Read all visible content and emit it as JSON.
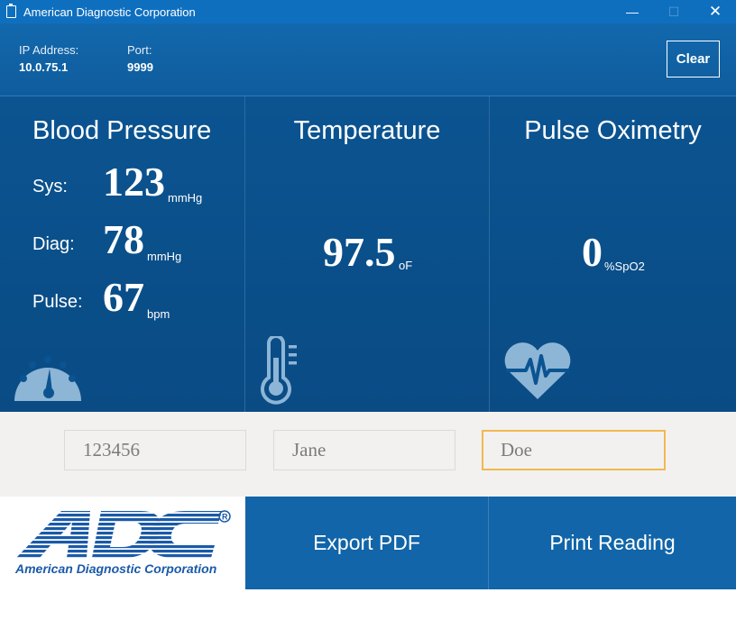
{
  "window": {
    "title": "American Diagnostic Corporation",
    "minimize_glyph": "—",
    "maximize_glyph": "☐",
    "close_glyph": "✕"
  },
  "connection": {
    "ip_label": "IP Address:",
    "ip_value": "10.0.75.1",
    "port_label": "Port:",
    "port_value": "9999",
    "clear_label": "Clear"
  },
  "blood_pressure": {
    "title": "Blood Pressure",
    "sys_label": "Sys:",
    "sys_value": "123",
    "sys_unit": "mmHg",
    "diag_label": "Diag:",
    "diag_value": "78",
    "diag_unit": "mmHg",
    "pulse_label": "Pulse:",
    "pulse_value": "67",
    "pulse_unit": "bpm",
    "icon": "gauge-icon"
  },
  "temperature": {
    "title": "Temperature",
    "value": "97.5",
    "unit": "oF",
    "icon": "thermometer-icon"
  },
  "pulse_oximetry": {
    "title": "Pulse Oximetry",
    "value": "0",
    "unit": "%SpO2",
    "icon": "heart-pulse-icon"
  },
  "patient": {
    "id_value": "123456",
    "first_name_value": "Jane",
    "last_name_value": "Doe"
  },
  "actions": {
    "export_label": "Export PDF",
    "print_label": "Print Reading"
  },
  "logo": {
    "text": "American Diagnostic Corporation",
    "mark": "ADC"
  },
  "colors": {
    "titlebar": "#0f6fbf",
    "panel_bg": "#0b5491",
    "action_bg": "#1165a8",
    "icon_tint": "#8db5d6",
    "focus_border": "#f2b84f",
    "logo_blue": "#1a5aa8"
  }
}
